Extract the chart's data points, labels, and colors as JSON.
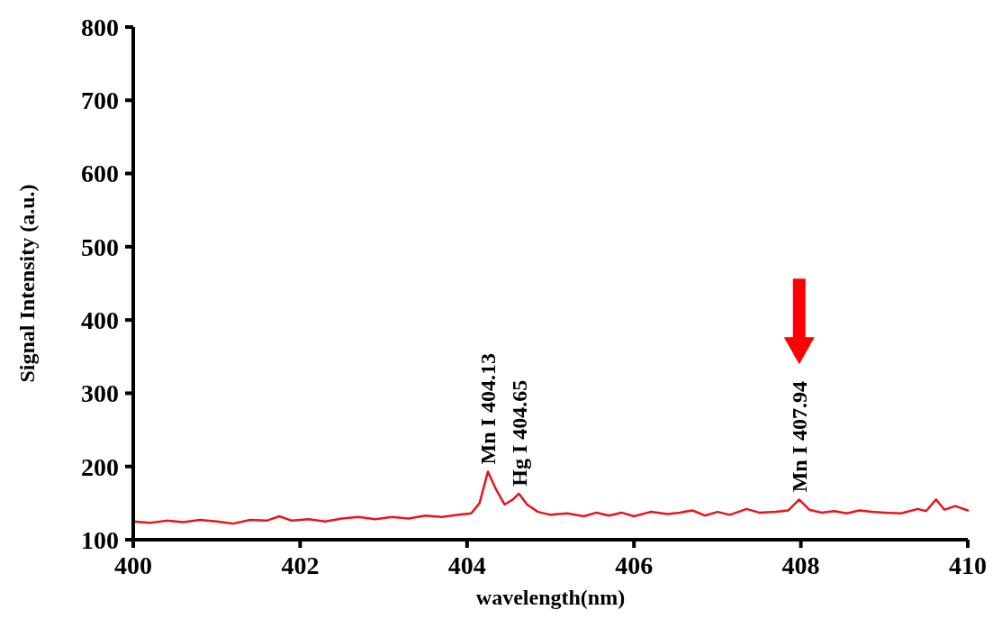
{
  "chart_data": {
    "type": "line",
    "xlabel": "wavelength(nm)",
    "ylabel": "Signal Intensity (a.u.)",
    "xlim": [
      400,
      410
    ],
    "xticks": [
      400,
      402,
      404,
      406,
      408,
      410
    ],
    "ylim": [
      100,
      800
    ],
    "yticks": [
      100,
      200,
      300,
      400,
      500,
      600,
      700,
      800
    ],
    "grid": false,
    "marker": "none",
    "line_style": "solid",
    "annotations": [
      {
        "text": "Mn I 404.13",
        "x": 404.25,
        "y": 193
      },
      {
        "text": "Hg I 404.65",
        "x": 404.62,
        "y": 163
      },
      {
        "text": "Mn I 407.94",
        "x": 407.98,
        "y": 155
      }
    ],
    "series": [
      {
        "color": "#e8141c",
        "x": [
          400,
          400.2,
          400.4,
          400.6,
          400.8,
          401.0,
          401.2,
          401.4,
          401.6,
          401.75,
          401.9,
          402.1,
          402.3,
          402.5,
          402.7,
          402.9,
          403.1,
          403.3,
          403.5,
          403.7,
          403.9,
          404.05,
          404.15,
          404.25,
          404.35,
          404.45,
          404.55,
          404.62,
          404.72,
          404.85,
          405.0,
          405.2,
          405.4,
          405.55,
          405.7,
          405.85,
          406.0,
          406.2,
          406.4,
          406.55,
          406.7,
          406.85,
          407.0,
          407.15,
          407.35,
          407.5,
          407.7,
          407.85,
          407.98,
          408.1,
          408.25,
          408.4,
          408.55,
          408.7,
          408.85,
          409.0,
          409.2,
          409.4,
          409.5,
          409.62,
          409.72,
          409.85,
          410.0
        ],
        "values": [
          125,
          123,
          126,
          124,
          127,
          125,
          122,
          127,
          126,
          132,
          126,
          128,
          125,
          129,
          131,
          128,
          131,
          129,
          133,
          131,
          134,
          136,
          150,
          193,
          168,
          148,
          155,
          163,
          148,
          138,
          134,
          136,
          132,
          137,
          133,
          137,
          132,
          138,
          135,
          137,
          140,
          133,
          138,
          134,
          142,
          137,
          138,
          140,
          155,
          141,
          137,
          139,
          136,
          140,
          138,
          137,
          136,
          142,
          139,
          155,
          141,
          146,
          140
        ]
      }
    ]
  }
}
